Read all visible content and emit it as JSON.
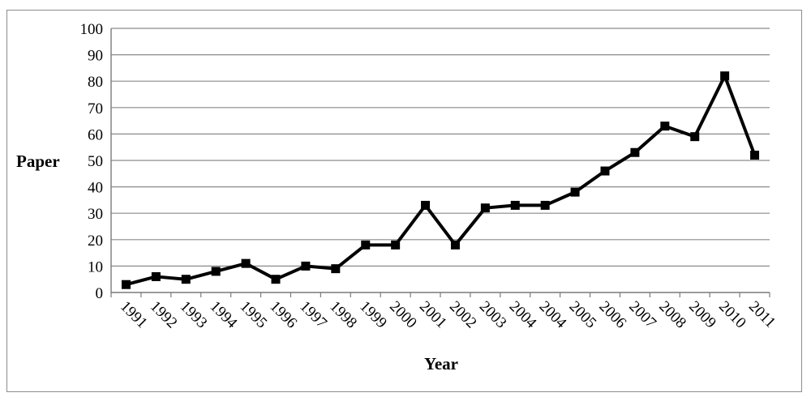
{
  "chart_data": {
    "type": "line",
    "title": "",
    "xlabel": "Year",
    "ylabel": "Paper",
    "ylim": [
      0,
      100
    ],
    "yticks": [
      0,
      10,
      20,
      30,
      40,
      50,
      60,
      70,
      80,
      90,
      100
    ],
    "grid": true,
    "legend": "none",
    "categories": [
      "1991",
      "1992",
      "1993",
      "1994",
      "1995",
      "1996",
      "1997",
      "1998",
      "1999",
      "2000",
      "2001",
      "2002",
      "2003",
      "2004",
      "2004",
      "2005",
      "2006",
      "2007",
      "2008",
      "2009",
      "2010",
      "2011"
    ],
    "series": [
      {
        "values": [
          3,
          6,
          5,
          8,
          11,
          5,
          10,
          9,
          18,
          18,
          33,
          18,
          32,
          33,
          33,
          38,
          46,
          53,
          63,
          59,
          82,
          52
        ],
        "color": "#000000"
      }
    ]
  }
}
